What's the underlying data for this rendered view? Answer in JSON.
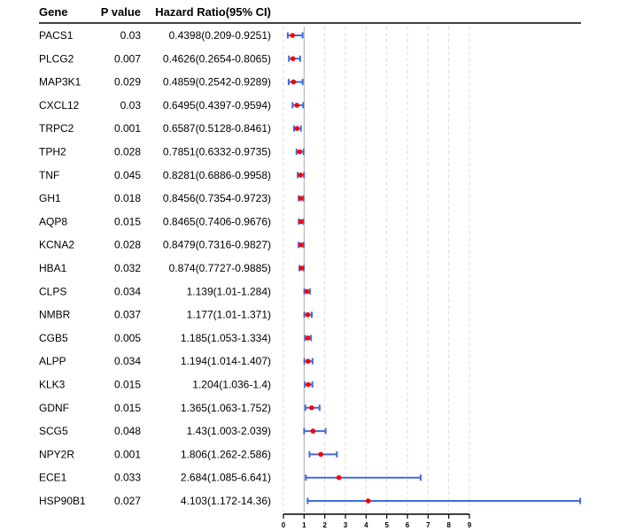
{
  "colors": {
    "ci_line": "#4169E1",
    "point": "#FF0000",
    "grid": "#DDDDDD",
    "reference": "#AAAAAA",
    "text": "#000000"
  },
  "chart_data": {
    "type": "forest",
    "headers": {
      "gene": "Gene",
      "pvalue": "P value",
      "hr": "Hazard Ratio(95% CI)"
    },
    "xlim": [
      0,
      9
    ],
    "x_ticks": [
      "0",
      "1",
      "2",
      "3",
      "4",
      "5",
      "6",
      "7",
      "8",
      "9"
    ],
    "reference_line": 1,
    "grid": true,
    "rows": [
      {
        "gene": "PACS1",
        "pvalue": "0.03",
        "hr_text": "0.4398(0.209-0.9251)",
        "hr": 0.4398,
        "lower": 0.209,
        "upper": 0.9251
      },
      {
        "gene": "PLCG2",
        "pvalue": "0.007",
        "hr_text": "0.4626(0.2654-0.8065)",
        "hr": 0.4626,
        "lower": 0.2654,
        "upper": 0.8065
      },
      {
        "gene": "MAP3K1",
        "pvalue": "0.029",
        "hr_text": "0.4859(0.2542-0.9289)",
        "hr": 0.4859,
        "lower": 0.2542,
        "upper": 0.9289
      },
      {
        "gene": "CXCL12",
        "pvalue": "0.03",
        "hr_text": "0.6495(0.4397-0.9594)",
        "hr": 0.6495,
        "lower": 0.4397,
        "upper": 0.9594
      },
      {
        "gene": "TRPC2",
        "pvalue": "0.001",
        "hr_text": "0.6587(0.5128-0.8461)",
        "hr": 0.6587,
        "lower": 0.5128,
        "upper": 0.8461
      },
      {
        "gene": "TPH2",
        "pvalue": "0.028",
        "hr_text": "0.7851(0.6332-0.9735)",
        "hr": 0.7851,
        "lower": 0.6332,
        "upper": 0.9735
      },
      {
        "gene": "TNF",
        "pvalue": "0.045",
        "hr_text": "0.8281(0.6886-0.9958)",
        "hr": 0.8281,
        "lower": 0.6886,
        "upper": 0.9958
      },
      {
        "gene": "GH1",
        "pvalue": "0.018",
        "hr_text": "0.8456(0.7354-0.9723)",
        "hr": 0.8456,
        "lower": 0.7354,
        "upper": 0.9723
      },
      {
        "gene": "AQP8",
        "pvalue": "0.015",
        "hr_text": "0.8465(0.7406-0.9676)",
        "hr": 0.8465,
        "lower": 0.7406,
        "upper": 0.9676
      },
      {
        "gene": "KCNA2",
        "pvalue": "0.028",
        "hr_text": "0.8479(0.7316-0.9827)",
        "hr": 0.8479,
        "lower": 0.7316,
        "upper": 0.9827
      },
      {
        "gene": "HBA1",
        "pvalue": "0.032",
        "hr_text": "0.874(0.7727-0.9885)",
        "hr": 0.874,
        "lower": 0.7727,
        "upper": 0.9885
      },
      {
        "gene": "CLPS",
        "pvalue": "0.034",
        "hr_text": "1.139(1.01-1.284)",
        "hr": 1.139,
        "lower": 1.01,
        "upper": 1.284
      },
      {
        "gene": "NMBR",
        "pvalue": "0.037",
        "hr_text": "1.177(1.01-1.371)",
        "hr": 1.177,
        "lower": 1.01,
        "upper": 1.371
      },
      {
        "gene": "CGB5",
        "pvalue": "0.005",
        "hr_text": "1.185(1.053-1.334)",
        "hr": 1.185,
        "lower": 1.053,
        "upper": 1.334
      },
      {
        "gene": "ALPP",
        "pvalue": "0.034",
        "hr_text": "1.194(1.014-1.407)",
        "hr": 1.194,
        "lower": 1.014,
        "upper": 1.407
      },
      {
        "gene": "KLK3",
        "pvalue": "0.015",
        "hr_text": "1.204(1.036-1.4)",
        "hr": 1.204,
        "lower": 1.036,
        "upper": 1.4
      },
      {
        "gene": "GDNF",
        "pvalue": "0.015",
        "hr_text": "1.365(1.063-1.752)",
        "hr": 1.365,
        "lower": 1.063,
        "upper": 1.752
      },
      {
        "gene": "SCG5",
        "pvalue": "0.048",
        "hr_text": "1.43(1.003-2.039)",
        "hr": 1.43,
        "lower": 1.003,
        "upper": 2.039
      },
      {
        "gene": "NPY2R",
        "pvalue": "0.001",
        "hr_text": "1.806(1.262-2.586)",
        "hr": 1.806,
        "lower": 1.262,
        "upper": 2.586
      },
      {
        "gene": "ECE1",
        "pvalue": "0.033",
        "hr_text": "2.684(1.085-6.641)",
        "hr": 2.684,
        "lower": 1.085,
        "upper": 6.641
      },
      {
        "gene": "HSP90B1",
        "pvalue": "0.027",
        "hr_text": "4.103(1.172-14.36)",
        "hr": 4.103,
        "lower": 1.172,
        "upper": 14.36
      }
    ]
  }
}
